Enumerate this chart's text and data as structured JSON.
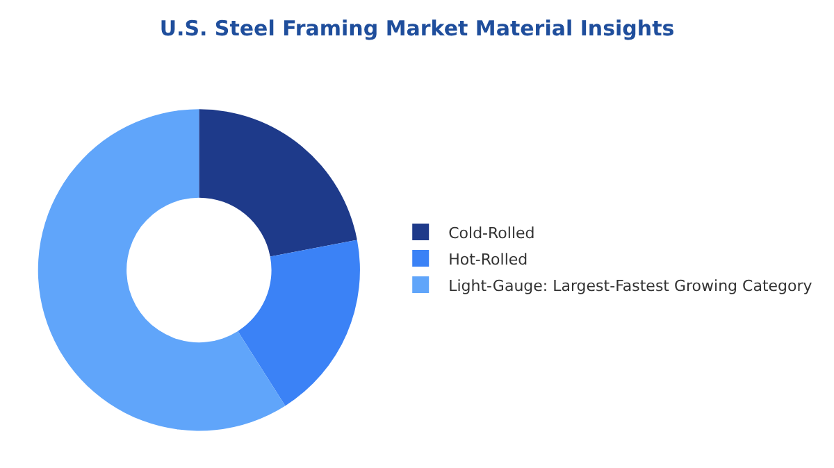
{
  "chart_data": {
    "type": "donut",
    "title": "U.S. Steel Framing Market Material Insights",
    "categories": [
      "Cold-Rolled",
      "Hot-Rolled",
      "Light-Gauge: Largest-Fastest Growing Category"
    ],
    "values": [
      22,
      19,
      59
    ],
    "colors": [
      "#1e3a8a",
      "#3b82f6",
      "#60a5fa"
    ],
    "legend": "right"
  }
}
